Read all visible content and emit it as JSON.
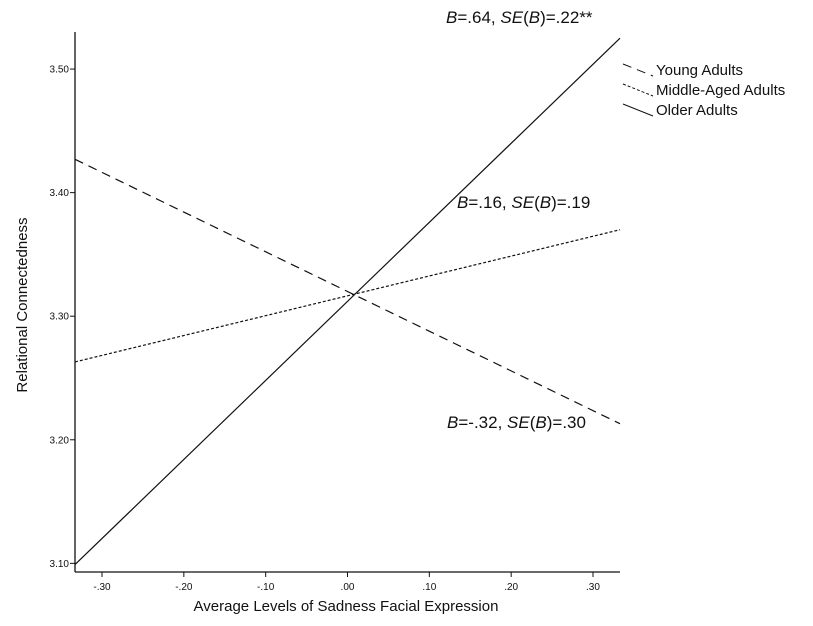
{
  "chart_data": {
    "type": "line",
    "xlabel": "Average Levels of Sadness Facial Expression",
    "ylabel": "Relational Connectedness",
    "xlim": [
      -0.333,
      0.333
    ],
    "ylim": [
      3.093,
      3.53
    ],
    "x_ticks": [
      {
        "value": -0.3,
        "label": "-.30"
      },
      {
        "value": -0.2,
        "label": "-.20"
      },
      {
        "value": -0.1,
        "label": "-.10"
      },
      {
        "value": 0.0,
        "label": ".00"
      },
      {
        "value": 0.1,
        "label": ".10"
      },
      {
        "value": 0.2,
        "label": ".20"
      },
      {
        "value": 0.3,
        "label": ".30"
      }
    ],
    "y_ticks": [
      {
        "value": 3.1,
        "label": "3.10"
      },
      {
        "value": 3.2,
        "label": "3.20"
      },
      {
        "value": 3.3,
        "label": "3.30"
      },
      {
        "value": 3.4,
        "label": "3.40"
      },
      {
        "value": 3.5,
        "label": "3.50"
      }
    ],
    "legend_position": "top-right",
    "grid": false,
    "series": [
      {
        "name": "Young Adults",
        "style": "dashed",
        "color": "#111111",
        "x": [
          -0.333,
          0.333
        ],
        "y": [
          3.427,
          3.213
        ],
        "annotation": {
          "b": "-.32",
          "se": ".30",
          "sig": ""
        }
      },
      {
        "name": "Middle-Aged Adults",
        "style": "dotted",
        "color": "#111111",
        "x": [
          -0.333,
          0.333
        ],
        "y": [
          3.263,
          3.37
        ],
        "annotation": {
          "b": ".16",
          "se": ".19",
          "sig": ""
        }
      },
      {
        "name": "Older Adults",
        "style": "solid",
        "color": "#111111",
        "x": [
          -0.333,
          0.333
        ],
        "y": [
          3.099,
          3.525
        ],
        "annotation": {
          "b": ".64",
          "se": ".22",
          "sig": "**"
        }
      }
    ]
  }
}
